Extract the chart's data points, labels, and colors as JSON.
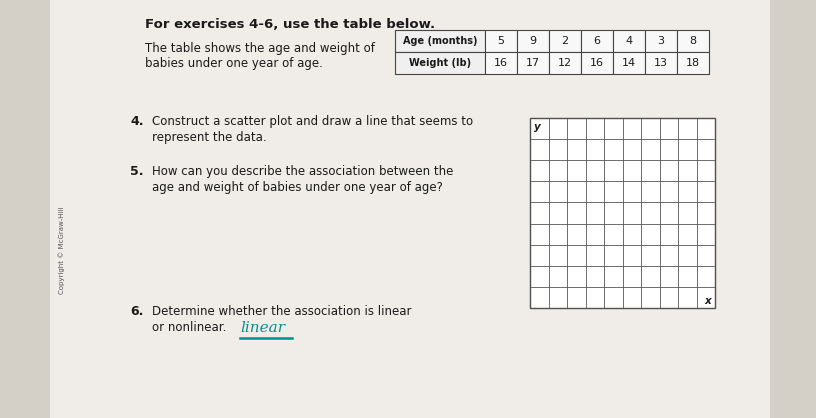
{
  "title_text": "For exercises 4-6, use the table below.",
  "description_line1": "The table shows the age and weight of",
  "description_line2": "babies under one year of age.",
  "table_headers": [
    "Age (months)",
    "5",
    "9",
    "2",
    "6",
    "4",
    "3",
    "8"
  ],
  "table_row2": [
    "Weight (lb)",
    "16",
    "17",
    "12",
    "16",
    "14",
    "13",
    "18"
  ],
  "q4_num": "4.",
  "q4_line1": "Construct a scatter plot and draw a line that seems to",
  "q4_line2": "represent the data.",
  "q5_num": "5.",
  "q5_line1": "How can you describe the association between the",
  "q5_line2": "age and weight of babies under one year of age?",
  "q6_num": "6.",
  "q6_line1": "Determine whether the association is linear",
  "q6_line2": "or nonlinear.",
  "q6_answer": "linear",
  "copyright": "Copyright © McGraw-Hill",
  "bg_color": "#d4cfc7",
  "paper_color": "#f0ede8",
  "grid_color": "#555555",
  "text_color": "#1a1a1a",
  "teal_color": "#009090",
  "grid_cols": 10,
  "grid_rows": 9
}
